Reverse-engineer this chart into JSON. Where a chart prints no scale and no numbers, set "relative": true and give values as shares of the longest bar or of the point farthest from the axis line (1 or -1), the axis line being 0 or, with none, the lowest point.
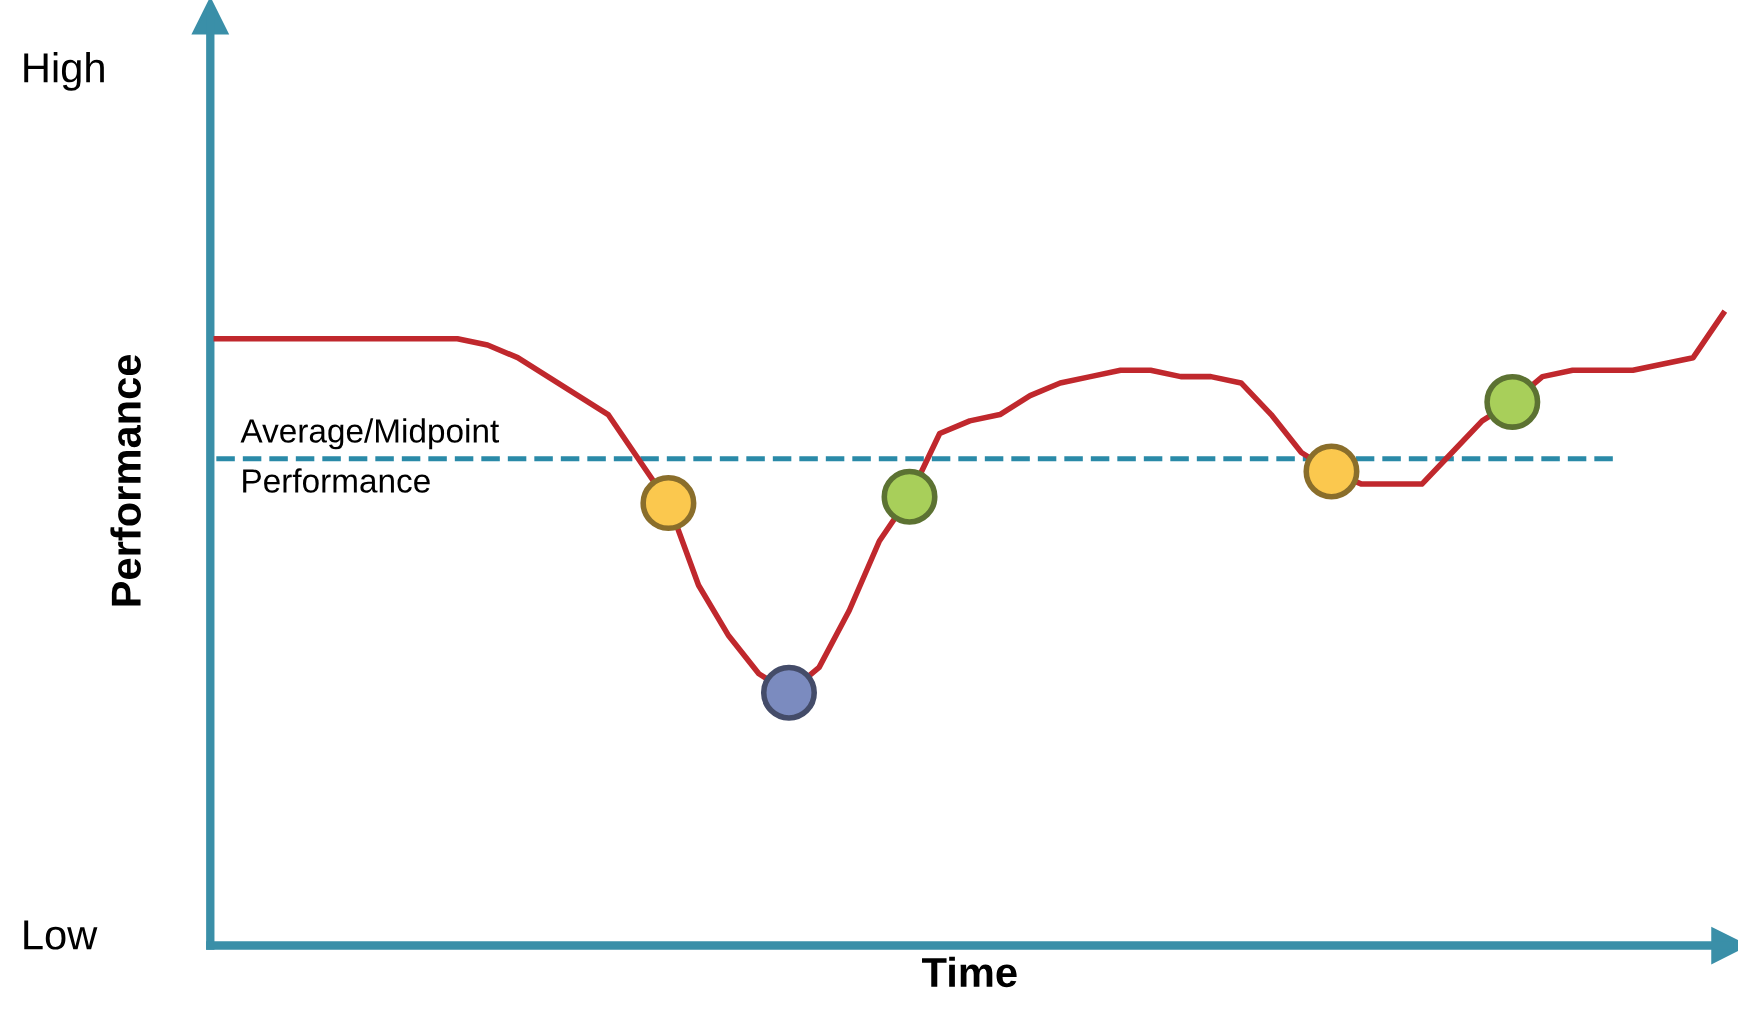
{
  "chart_data": {
    "type": "line",
    "relative": true,
    "xlabel": "Time",
    "ylabel": "Performance",
    "line_style": "solid",
    "categories": [
      null,
      null,
      null,
      null,
      null,
      null,
      null,
      null,
      null,
      null,
      null,
      null,
      null,
      null,
      null,
      null,
      null,
      null,
      null,
      null,
      null,
      null,
      null,
      null,
      null,
      null,
      null,
      null,
      null,
      null,
      null,
      null,
      null,
      null,
      null,
      null,
      null,
      null,
      null,
      null,
      null,
      null,
      null,
      null,
      null,
      null,
      null,
      null,
      null,
      null,
      null
    ],
    "series": [
      {
        "color": "#c0282d",
        "colors": [
          null,
          null,
          null,
          null,
          null,
          null,
          null,
          null,
          null,
          null,
          null,
          null,
          null,
          null,
          null,
          "#fbc84e",
          null,
          null,
          null,
          "#7b8bbf",
          null,
          null,
          null,
          "#a8cf5a",
          null,
          null,
          null,
          null,
          null,
          null,
          null,
          null,
          null,
          null,
          null,
          null,
          null,
          "#fbc84e",
          null,
          null,
          null,
          null,
          null,
          "#a8cf5a",
          null,
          null,
          null,
          null,
          null,
          null,
          null
        ],
        "values": [
          0.96,
          0.96,
          0.96,
          0.96,
          0.96,
          0.96,
          0.96,
          0.96,
          0.96,
          0.95,
          0.93,
          0.9,
          0.87,
          0.84,
          0.77,
          0.7,
          0.57,
          0.49,
          0.43,
          0.4,
          0.44,
          0.53,
          0.64,
          0.71,
          0.81,
          0.83,
          0.84,
          0.87,
          0.89,
          0.9,
          0.91,
          0.91,
          0.9,
          0.9,
          0.89,
          0.84,
          0.78,
          0.75,
          0.73,
          0.73,
          0.73,
          0.78,
          0.83,
          0.86,
          0.9,
          0.91,
          0.91,
          0.91,
          0.92,
          0.93,
          1
        ]
      }
    ],
    "ref_lines": [
      {
        "axis": "y",
        "value": 0.77,
        "label": "Average/Midpoint Performance",
        "color": "#2a8aa8",
        "line_style": "dashed"
      }
    ],
    "annotations": [
      "High",
      "Low"
    ]
  }
}
